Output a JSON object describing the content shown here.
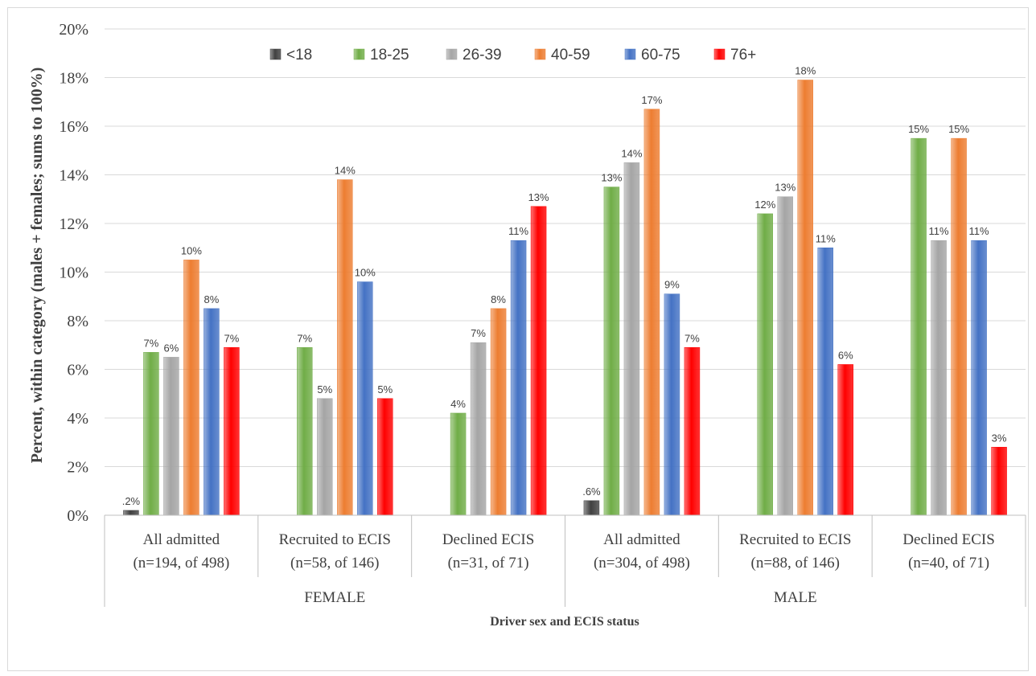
{
  "chart_data": {
    "type": "bar",
    "ylabel": "Percent, within category (males + females; sums to 100%)",
    "xlabel": "Driver sex and ECIS status",
    "ylim": [
      0,
      20
    ],
    "yticks": [
      "0%",
      "2%",
      "4%",
      "6%",
      "8%",
      "10%",
      "12%",
      "14%",
      "16%",
      "18%",
      "20%"
    ],
    "grid": true,
    "legend_position": "top",
    "groups": [
      {
        "label": "FEMALE",
        "categories": [
          0,
          1,
          2
        ]
      },
      {
        "label": "MALE",
        "categories": [
          3,
          4,
          5
        ]
      }
    ],
    "categories": [
      {
        "line1": "All admitted",
        "line2": "(n=194, of 498)"
      },
      {
        "line1": "Recruited  to ECIS",
        "line2": "(n=58, of 146)"
      },
      {
        "line1": "Declined ECIS",
        "line2": "(n=31, of 71)"
      },
      {
        "line1": "All admitted",
        "line2": "(n=304, of 498)"
      },
      {
        "line1": "Recruited to ECIS",
        "line2": "(n=88, of 146)"
      },
      {
        "line1": "Declined ECIS",
        "line2": "(n=40, of 71)"
      }
    ],
    "series": [
      {
        "name": "<18",
        "color": "#404040",
        "values": [
          0.2,
          0,
          0,
          0.6,
          0,
          0
        ],
        "labels": [
          ".2%",
          "",
          "",
          ".6%",
          "",
          ""
        ]
      },
      {
        "name": "18-25",
        "color": "#70ad47",
        "values": [
          6.7,
          6.9,
          4.2,
          13.5,
          12.4,
          15.5
        ],
        "labels": [
          "7%",
          "7%",
          "4%",
          "13%",
          "12%",
          "15%"
        ]
      },
      {
        "name": "26-39",
        "color": "#a5a5a5",
        "values": [
          6.5,
          4.8,
          7.1,
          14.5,
          13.1,
          11.3
        ],
        "labels": [
          "6%",
          "5%",
          "7%",
          "14%",
          "13%",
          "11%"
        ]
      },
      {
        "name": "40-59",
        "color": "#ed7d31",
        "values": [
          10.5,
          13.8,
          8.5,
          16.7,
          17.9,
          15.5
        ],
        "labels": [
          "10%",
          "14%",
          "8%",
          "17%",
          "18%",
          "15%"
        ]
      },
      {
        "name": "60-75",
        "color": "#4472c4",
        "values": [
          8.5,
          9.6,
          11.3,
          9.1,
          11.0,
          11.3
        ],
        "labels": [
          "8%",
          "10%",
          "11%",
          "9%",
          "11%",
          "11%"
        ]
      },
      {
        "name": "76+",
        "color": "#ff0000",
        "values": [
          6.9,
          4.8,
          12.7,
          6.9,
          6.2,
          2.8
        ],
        "labels": [
          "7%",
          "5%",
          "13%",
          "7%",
          "6%",
          "3%"
        ]
      }
    ]
  }
}
